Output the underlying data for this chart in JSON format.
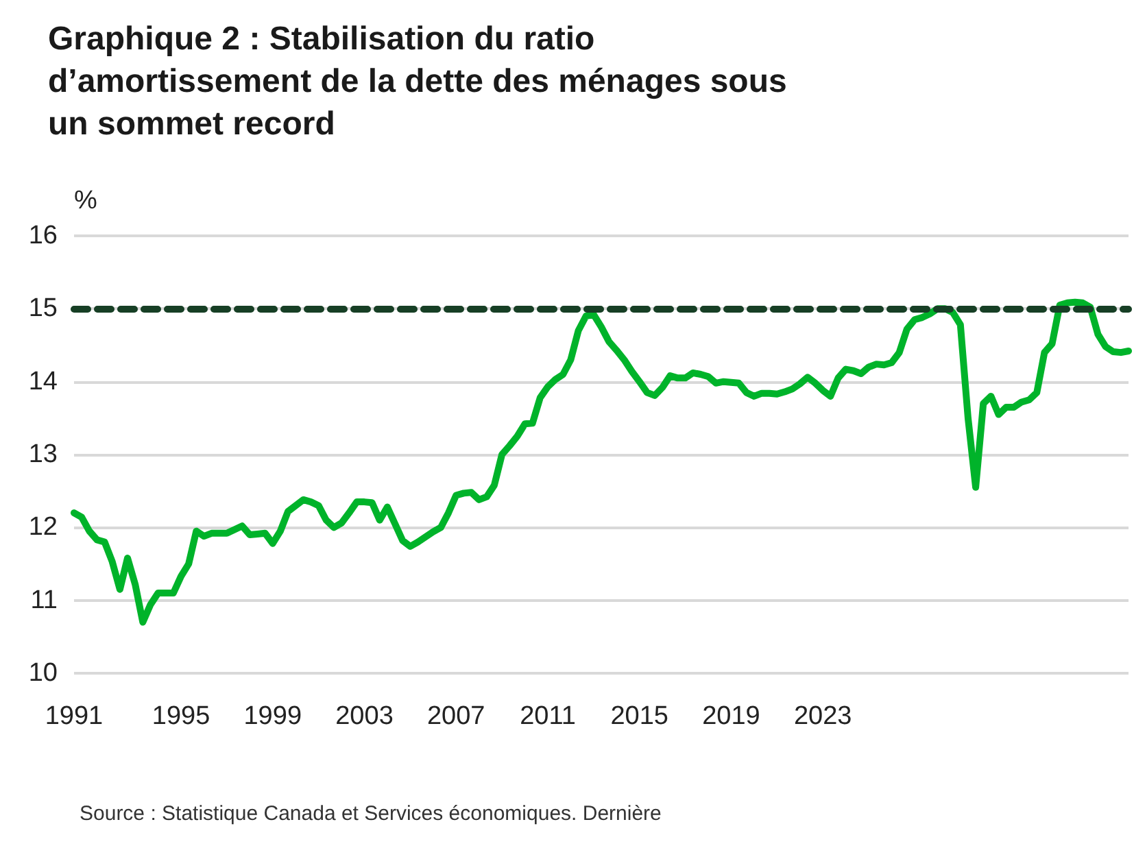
{
  "chart_data": {
    "type": "line",
    "title": "Graphique 2 : Stabilisation du ratio\nd’amortissement de la dette des ménages sous\nun sommet record",
    "ylabel": "%",
    "annotations": [
      "Source : Statistique Canada et Services économiques. Dernière"
    ],
    "categories": [
      "1991",
      null,
      null,
      null,
      null,
      null,
      null,
      null,
      null,
      null,
      null,
      null,
      null,
      null,
      "1995",
      null,
      null,
      null,
      null,
      null,
      null,
      null,
      null,
      null,
      null,
      null,
      "1999",
      null,
      null,
      null,
      null,
      null,
      null,
      null,
      null,
      null,
      null,
      null,
      "2003",
      null,
      null,
      null,
      null,
      null,
      null,
      null,
      null,
      null,
      null,
      null,
      "2007",
      null,
      null,
      null,
      null,
      null,
      null,
      null,
      null,
      null,
      null,
      null,
      "2011",
      null,
      null,
      null,
      null,
      null,
      null,
      null,
      null,
      null,
      null,
      null,
      "2015",
      null,
      null,
      null,
      null,
      null,
      null,
      null,
      null,
      null,
      null,
      null,
      "2019",
      null,
      null,
      null,
      null,
      null,
      null,
      null,
      null,
      null,
      null,
      null,
      "2023",
      null,
      null,
      null,
      null,
      null,
      null,
      null,
      null,
      null,
      null,
      null,
      null,
      null,
      null,
      null,
      null,
      null,
      null,
      null,
      null,
      null,
      null,
      null,
      null,
      null,
      null,
      null,
      null,
      null,
      null,
      null,
      null,
      null,
      null,
      null,
      null,
      null,
      null,
      null,
      null
    ],
    "series": [
      {
        "color": "#00b32a",
        "values": [
          12.2,
          12.14,
          11.95,
          11.83,
          11.8,
          11.53,
          11.15,
          11.58,
          11.22,
          10.7,
          10.94,
          11.1,
          11.1,
          11.1,
          11.33,
          11.5,
          11.95,
          11.88,
          11.92,
          11.92,
          11.92,
          11.97,
          12.02,
          11.9,
          11.91,
          11.92,
          11.78,
          11.95,
          12.22,
          12.3,
          12.38,
          12.35,
          12.3,
          12.1,
          12.0,
          12.06,
          12.2,
          12.35,
          12.35,
          12.34,
          12.1,
          12.28,
          12.05,
          11.82,
          11.74,
          11.8,
          11.87,
          11.94,
          12.0,
          12.2,
          12.44,
          12.47,
          12.48,
          12.38,
          12.42,
          12.58,
          13.0,
          13.12,
          13.25,
          13.42,
          13.43,
          13.78,
          13.93,
          14.03,
          14.1,
          14.3,
          14.7,
          14.9,
          14.92,
          14.75,
          14.55,
          14.43,
          14.3,
          14.14,
          14.0,
          13.85,
          13.81,
          13.92,
          14.08,
          14.05,
          14.05,
          14.12,
          14.1,
          14.07,
          13.98,
          14.0,
          13.99,
          13.98,
          13.85,
          13.8,
          13.84,
          13.84,
          13.83,
          13.86,
          13.9,
          13.97,
          14.06,
          13.98,
          13.88,
          13.8,
          14.05,
          14.17,
          14.15,
          14.11,
          14.2,
          14.24,
          14.23,
          14.26,
          14.4,
          14.72,
          14.85,
          14.88,
          14.93,
          15.0,
          15.0,
          14.95,
          14.78,
          13.5,
          12.55,
          13.7,
          13.8,
          13.55,
          13.65,
          13.65,
          13.72,
          13.75,
          13.85,
          14.4,
          14.52,
          15.05,
          15.08,
          15.09,
          15.08,
          15.02,
          14.65,
          14.48,
          14.41,
          14.4,
          14.42
        ]
      }
    ],
    "ylim": [
      10,
      16
    ],
    "yticks": [
      10,
      11,
      12,
      13,
      14,
      15,
      16
    ],
    "ref_lines": [
      {
        "axis": "y",
        "value": 15,
        "color": "#173f25",
        "line_style": "dashed"
      }
    ],
    "grid": "y",
    "marker": "none",
    "line_style": "solid"
  }
}
